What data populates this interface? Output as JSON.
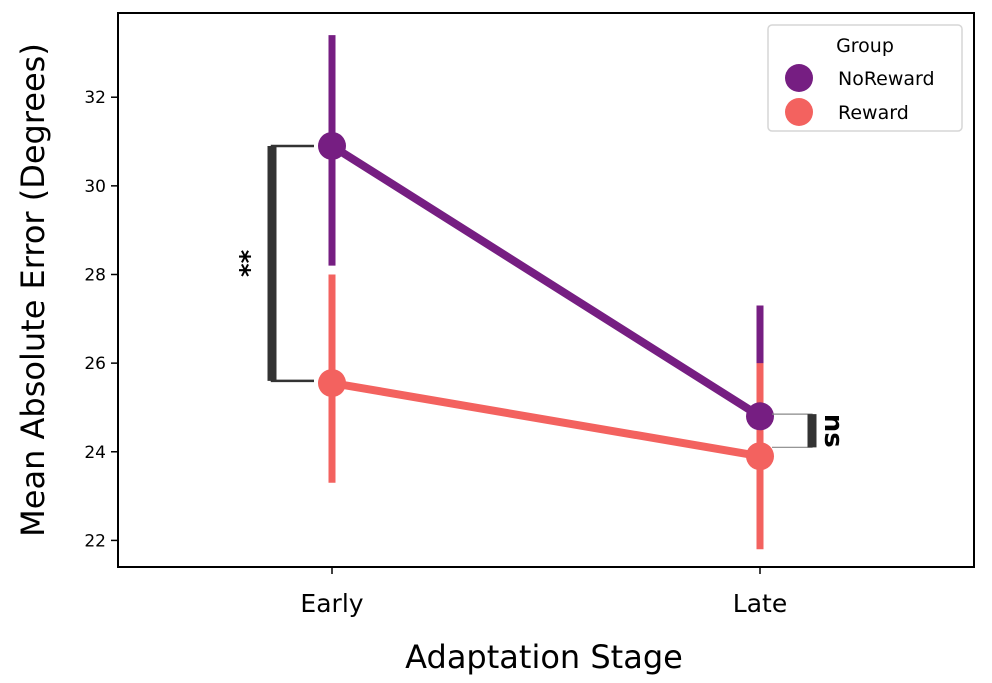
{
  "chart_data": {
    "type": "line",
    "categories": [
      "Early",
      "Late"
    ],
    "xlabel": "Adaptation Stage",
    "ylabel": "Mean Absolute Error (Degrees)",
    "ylim": [
      21.4,
      33.9
    ],
    "yticks": [
      22,
      24,
      26,
      28,
      30,
      32
    ],
    "legend": {
      "title": "Group",
      "placement": "top-right"
    },
    "grid": false,
    "series": [
      {
        "name": "NoReward",
        "color": "#761e82",
        "values": [
          30.9,
          24.8
        ],
        "ci_low": [
          28.2,
          22.5
        ],
        "ci_high": [
          33.4,
          27.3
        ]
      },
      {
        "name": "Reward",
        "color": "#f3625f",
        "values": [
          25.55,
          23.9
        ],
        "ci_low": [
          23.3,
          21.8
        ],
        "ci_high": [
          28.0,
          26.0
        ]
      }
    ],
    "annotations": [
      {
        "category": "Early",
        "label": "**",
        "y_low": 25.6,
        "y_high": 30.9
      },
      {
        "category": "Late",
        "label": "ns",
        "y_low": 24.1,
        "y_high": 24.85
      }
    ]
  }
}
